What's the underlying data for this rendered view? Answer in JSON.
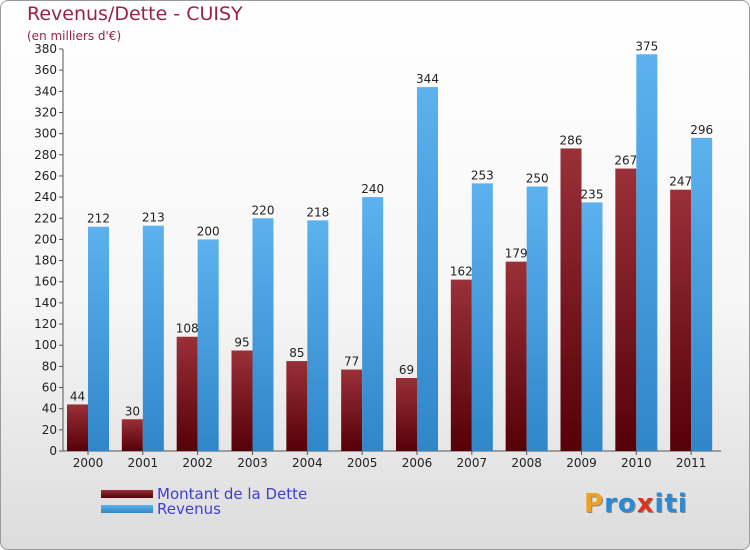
{
  "chart_data": {
    "type": "bar",
    "title": "Revenus/Dette - CUISY",
    "subtitle": "(en milliers d'€)",
    "categories": [
      "2000",
      "2001",
      "2002",
      "2003",
      "2004",
      "2005",
      "2006",
      "2007",
      "2008",
      "2009",
      "2010",
      "2011"
    ],
    "series": [
      {
        "name": "Montant de la Dette",
        "color": "#7a0f18",
        "values": [
          44,
          30,
          108,
          95,
          85,
          77,
          69,
          162,
          179,
          286,
          267,
          247
        ]
      },
      {
        "name": "Revenus",
        "color": "#4aa3e6",
        "values": [
          212,
          213,
          200,
          220,
          218,
          240,
          344,
          253,
          250,
          235,
          375,
          296
        ]
      }
    ],
    "ylim": [
      0,
      380
    ],
    "ytick_step": 20,
    "grid": false,
    "legend_position": "bottom-left"
  },
  "brand": {
    "letters": [
      "P",
      "r",
      "o",
      "x",
      "i",
      "t",
      "i"
    ],
    "colors": [
      "#f0a020",
      "#2a8ad6",
      "#2a8ad6",
      "#e03020",
      "#2a8ad6",
      "#2a8ad6",
      "#2a8ad6"
    ]
  }
}
